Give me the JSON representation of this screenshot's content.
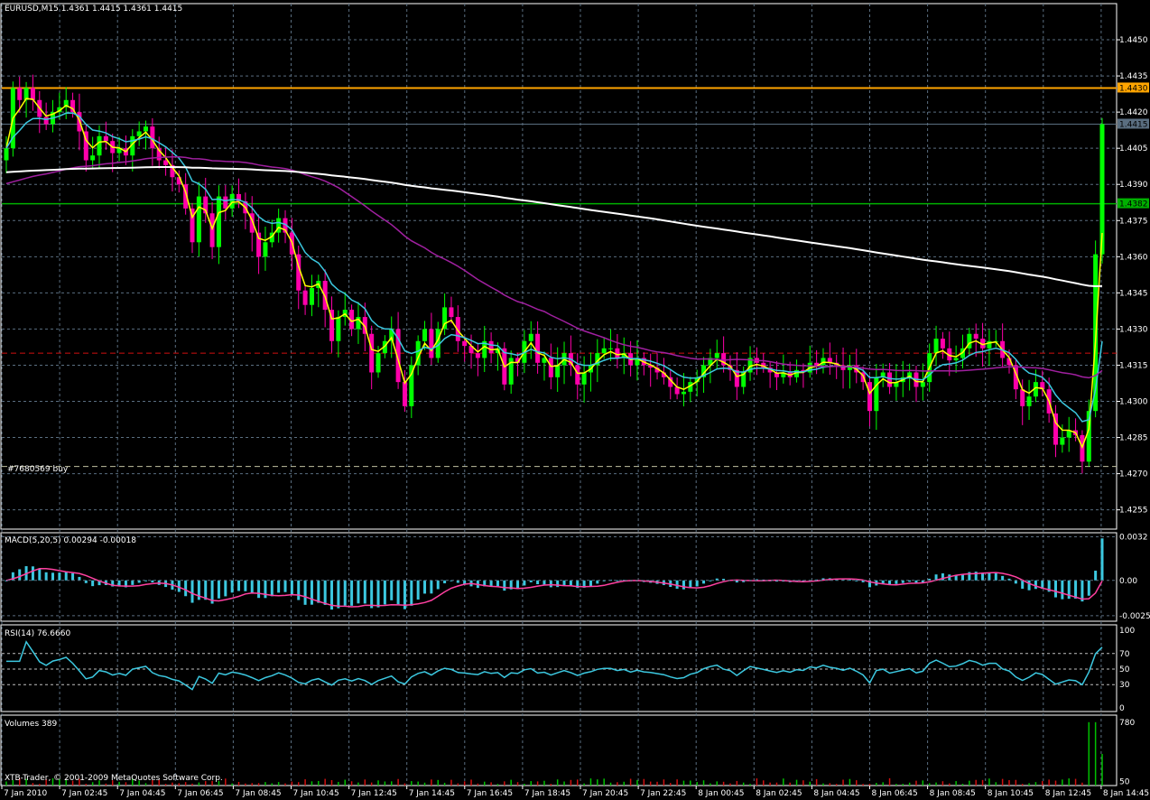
{
  "chart_data": {
    "type": "candlestick",
    "symbol_header": "EURUSD,M15  1.4361 1.4415 1.4361 1.4415",
    "price_axis": {
      "ticks": [
        "1.4450",
        "1.4435",
        "1.4420",
        "1.4405",
        "1.4390",
        "1.4375",
        "1.4360",
        "1.4345",
        "1.4330",
        "1.4315",
        "1.4300",
        "1.4285",
        "1.4270",
        "1.4255"
      ],
      "range": [
        1.4247,
        1.4465
      ]
    },
    "time_axis": {
      "ticks": [
        "7 Jan 2010",
        "7 Jan 02:45",
        "7 Jan 04:45",
        "7 Jan 06:45",
        "7 Jan 08:45",
        "7 Jan 10:45",
        "7 Jan 12:45",
        "7 Jan 14:45",
        "7 Jan 16:45",
        "7 Jan 18:45",
        "7 Jan 20:45",
        "7 Jan 22:45",
        "8 Jan 00:45",
        "8 Jan 02:45",
        "8 Jan 04:45",
        "8 Jan 06:45",
        "8 Jan 08:45",
        "8 Jan 10:45",
        "8 Jan 12:45",
        "8 Jan 14:45"
      ]
    },
    "hlines": [
      {
        "price": 1.443,
        "label": "1.4430",
        "color": "#ffa500"
      },
      {
        "price": 1.4415,
        "label": "1.4415",
        "color": "#5a6e80"
      },
      {
        "price": 1.4382,
        "label": "1.4382",
        "color": "#00b000"
      },
      {
        "price": 1.432,
        "label": "",
        "color": "#d01010"
      },
      {
        "price": 1.4273,
        "label": "",
        "color": "#c0c0a0"
      }
    ],
    "order_label": "#7680569 buy",
    "bull_color": "#00ff00",
    "bear_color": "#ff00aa",
    "ma_colors": {
      "fast": "#ffff00",
      "medium": "#3cc8e0",
      "slow": "#a020a0",
      "long": "#ffffff"
    },
    "closes": [
      1.4405,
      1.443,
      1.4425,
      1.443,
      1.4425,
      1.4418,
      1.4415,
      1.442,
      1.4422,
      1.4425,
      1.442,
      1.4412,
      1.44,
      1.4402,
      1.441,
      1.4408,
      1.4403,
      1.4405,
      1.4402,
      1.441,
      1.4412,
      1.4414,
      1.4405,
      1.44,
      1.4398,
      1.4393,
      1.439,
      1.438,
      1.4366,
      1.4385,
      1.4378,
      1.4364,
      1.4385,
      1.438,
      1.4386,
      1.4383,
      1.4378,
      1.437,
      1.436,
      1.4366,
      1.437,
      1.4376,
      1.437,
      1.4361,
      1.4346,
      1.434,
      1.4347,
      1.435,
      1.4338,
      1.4325,
      1.4335,
      1.4338,
      1.433,
      1.4335,
      1.4328,
      1.4312,
      1.432,
      1.4325,
      1.433,
      1.4308,
      1.4298,
      1.4315,
      1.4325,
      1.433,
      1.4318,
      1.433,
      1.4339,
      1.4335,
      1.4325,
      1.4323,
      1.432,
      1.4318,
      1.4325,
      1.432,
      1.4322,
      1.4307,
      1.4318,
      1.4316,
      1.4325,
      1.4328,
      1.4316,
      1.4318,
      1.431,
      1.4315,
      1.432,
      1.4315,
      1.4307,
      1.4312,
      1.4315,
      1.432,
      1.4322,
      1.4322,
      1.4318,
      1.432,
      1.4315,
      1.4318,
      1.4315,
      1.4314,
      1.4312,
      1.431,
      1.4306,
      1.4303,
      1.4304,
      1.4308,
      1.431,
      1.4315,
      1.4318,
      1.432,
      1.4315,
      1.4313,
      1.4306,
      1.4312,
      1.4318,
      1.4316,
      1.4314,
      1.4312,
      1.431,
      1.4312,
      1.431,
      1.4313,
      1.4312,
      1.4316,
      1.4315,
      1.4318,
      1.4316,
      1.4315,
      1.4313,
      1.4315,
      1.4312,
      1.4308,
      1.4296,
      1.431,
      1.4312,
      1.4306,
      1.4308,
      1.431,
      1.4312,
      1.4306,
      1.4308,
      1.432,
      1.4326,
      1.4322,
      1.4317,
      1.4318,
      1.4322,
      1.4328,
      1.4326,
      1.4322,
      1.4325,
      1.4325,
      1.4318,
      1.4315,
      1.4305,
      1.4298,
      1.4302,
      1.4308,
      1.4305,
      1.4295,
      1.4282,
      1.4285,
      1.4288,
      1.4286,
      1.4275,
      1.4296,
      1.4361,
      1.4415
    ],
    "panels": {
      "macd": {
        "label": "MACD(5,20,5) 0.00294 -0.00018",
        "ticks": [
          "0.0032",
          "0.00",
          "-0.00259"
        ],
        "range": [
          -0.003,
          0.0035
        ],
        "hist_color": "#3cc8e0",
        "signal_color": "#ff40a0"
      },
      "rsi": {
        "label": "RSI(14) 76.6660",
        "ticks": [
          "100",
          "70",
          "50",
          "30",
          "0"
        ],
        "levels": [
          70,
          50,
          30
        ],
        "range": [
          0,
          100
        ],
        "color": "#3cc8e0"
      },
      "volumes": {
        "label": "Volumes 389",
        "ticks": [
          "780",
          "50"
        ],
        "range": [
          0,
          800
        ]
      }
    },
    "copyright": "XTB-Trader, © 2001-2009 MetaQuotes Software Corp."
  }
}
